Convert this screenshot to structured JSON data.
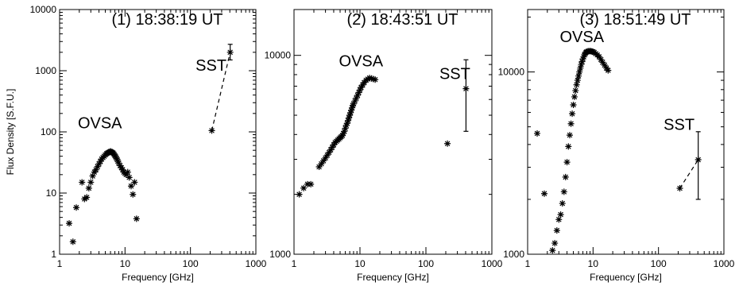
{
  "chart_data": [
    {
      "type": "scatter",
      "title": "(1) 18:38:19 UT",
      "xlabel": "Frequency [GHz]",
      "ylabel": "Flux Density [S.F.U.]",
      "xscale": "log",
      "yscale": "log",
      "xlim": [
        1,
        1000
      ],
      "ylim": [
        1,
        10000
      ],
      "xticks": [
        1,
        10,
        100,
        1000
      ],
      "xtick_labels": [
        "1",
        "10",
        "100",
        "1000"
      ],
      "yticks": [
        1,
        10,
        100,
        1000,
        10000
      ],
      "ytick_labels": [
        "1",
        "10",
        "100",
        "1000",
        "10000"
      ],
      "annotations": [
        {
          "text": "OVSA",
          "x": 1.9,
          "y": 115
        },
        {
          "text": "SST",
          "x": 120,
          "y": 1000
        }
      ],
      "series": [
        {
          "name": "OVSA",
          "marker": "asterisk",
          "x": [
            1.4,
            1.6,
            1.8,
            2.2,
            2.4,
            2.6,
            2.8,
            3.0,
            3.2,
            3.4,
            3.6,
            3.8,
            4.0,
            4.2,
            4.4,
            4.6,
            4.8,
            5.0,
            5.2,
            5.4,
            5.6,
            5.8,
            6.0,
            6.2,
            6.4,
            6.6,
            6.8,
            7.0,
            7.2,
            7.4,
            7.6,
            7.8,
            8.0,
            8.4,
            8.8,
            9.2,
            9.6,
            10.0,
            10.4,
            11.0,
            11.6,
            12.4,
            13.2,
            14.0,
            15.0
          ],
          "y": [
            3.2,
            1.6,
            5.8,
            15,
            8,
            8.5,
            12,
            15,
            19,
            22,
            24,
            27,
            30,
            33,
            36,
            38,
            40,
            42,
            44,
            45,
            46,
            47,
            48,
            47,
            46,
            45,
            43,
            41,
            39,
            37,
            35,
            33,
            31,
            28,
            26,
            24,
            22,
            21,
            20,
            22,
            18,
            13,
            9.5,
            15,
            3.8
          ]
        },
        {
          "name": "SST",
          "marker": "asterisk",
          "x": [
            212,
            405
          ],
          "y": [
            105,
            2000
          ],
          "y_err_low": [
            null,
            1500
          ],
          "y_err_high": [
            null,
            2700
          ],
          "connector": "dashed"
        }
      ]
    },
    {
      "type": "scatter",
      "title": "(2) 18:43:51 UT",
      "xlabel": "Frequency [GHz]",
      "ylabel": "",
      "xscale": "log",
      "yscale": "log",
      "xlim": [
        1,
        1000
      ],
      "ylim": [
        1000,
        17000
      ],
      "xticks": [
        1,
        10,
        100,
        1000
      ],
      "xtick_labels": [
        "1",
        "10",
        "100",
        "1000"
      ],
      "yticks": [
        1000,
        10000
      ],
      "ytick_labels": [
        "1000",
        "10000"
      ],
      "annotations": [
        {
          "text": "OVSA",
          "x": 4.8,
          "y": 8800
        },
        {
          "text": "SST",
          "x": 160,
          "y": 7600
        }
      ],
      "series": [
        {
          "name": "OVSA",
          "marker": "asterisk",
          "x": [
            1.2,
            1.4,
            1.6,
            1.8,
            2.4,
            2.6,
            2.8,
            3.0,
            3.2,
            3.4,
            3.6,
            3.8,
            4.0,
            4.2,
            4.4,
            4.6,
            4.8,
            5.0,
            5.2,
            5.4,
            5.6,
            5.8,
            6.0,
            6.2,
            6.4,
            6.6,
            6.8,
            7.0,
            7.2,
            7.4,
            7.6,
            7.8,
            8.0,
            8.4,
            8.8,
            9.2,
            9.6,
            10.0,
            10.4,
            11.0,
            11.6,
            12.4,
            13.2,
            14.0,
            15.0,
            16.0,
            17.0
          ],
          "y": [
            2000,
            2150,
            2250,
            2250,
            2750,
            2850,
            2950,
            3050,
            3150,
            3250,
            3350,
            3450,
            3550,
            3650,
            3700,
            3750,
            3800,
            3850,
            3900,
            3950,
            4050,
            4150,
            4300,
            4450,
            4550,
            4700,
            4850,
            5000,
            5150,
            5300,
            5450,
            5600,
            5700,
            5900,
            6100,
            6300,
            6500,
            6700,
            6900,
            7100,
            7300,
            7500,
            7600,
            7700,
            7650,
            7600,
            7550
          ]
        },
        {
          "name": "SST",
          "marker": "asterisk",
          "x": [
            212,
            405
          ],
          "y": [
            3600,
            6800
          ],
          "y_err_low": [
            null,
            4150
          ],
          "y_err_high": [
            null,
            9500
          ]
        }
      ]
    },
    {
      "type": "scatter",
      "title": "(3) 18:51:49 UT",
      "xlabel": "Frequency [GHz]",
      "ylabel": "",
      "xscale": "log",
      "yscale": "log",
      "xlim": [
        1,
        1000
      ],
      "ylim": [
        1000,
        22000
      ],
      "xticks": [
        1,
        10,
        100,
        1000
      ],
      "xtick_labels": [
        "1",
        "10",
        "100",
        "1000"
      ],
      "yticks": [
        1000,
        10000
      ],
      "ytick_labels": [
        "1000",
        "10000"
      ],
      "annotations": [
        {
          "text": "OVSA",
          "x": 3.1,
          "y": 14600
        },
        {
          "text": "SST",
          "x": 120,
          "y": 4800
        }
      ],
      "series": [
        {
          "name": "OVSA",
          "marker": "asterisk",
          "x": [
            1.4,
            1.8,
            2.4,
            2.6,
            2.8,
            3.0,
            3.2,
            3.4,
            3.6,
            3.8,
            4.0,
            4.2,
            4.4,
            4.6,
            4.8,
            5.0,
            5.2,
            5.4,
            5.6,
            5.8,
            6.0,
            6.2,
            6.4,
            6.6,
            6.8,
            7.0,
            7.2,
            7.4,
            7.6,
            7.8,
            8.0,
            8.4,
            8.8,
            9.2,
            9.6,
            10.0,
            10.4,
            11.0,
            11.6,
            12.4,
            13.2,
            14.0,
            15.0,
            16.0,
            17.0
          ],
          "y": [
            4600,
            2150,
            1050,
            1150,
            1350,
            1550,
            1650,
            1900,
            2200,
            2650,
            3200,
            3900,
            4500,
            5200,
            5900,
            6600,
            7300,
            7900,
            8500,
            9000,
            9500,
            10000,
            10500,
            11000,
            11400,
            11800,
            12100,
            12400,
            12600,
            12800,
            12900,
            13000,
            13000,
            13000,
            12950,
            12900,
            12800,
            12600,
            12400,
            12100,
            11700,
            11300,
            10900,
            10500,
            10200
          ]
        },
        {
          "name": "SST",
          "marker": "asterisk",
          "x": [
            212,
            405
          ],
          "y": [
            2300,
            3300
          ],
          "y_err_low": [
            null,
            2000
          ],
          "y_err_high": [
            null,
            4700
          ],
          "connector": "dashed"
        }
      ]
    }
  ]
}
